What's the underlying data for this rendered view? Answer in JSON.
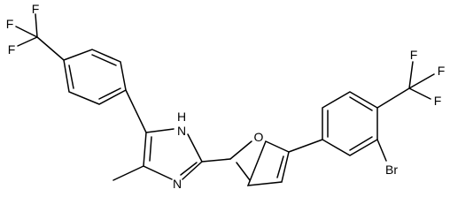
{
  "molecule": {
    "left_cf3": [
      "F",
      "F",
      "F"
    ],
    "imidazole": {
      "h": "H",
      "nh": "N",
      "n": "N"
    },
    "furan": {
      "o": "O"
    },
    "right_ring": {
      "br": "Br",
      "cf3": [
        "F",
        "F",
        "F"
      ]
    }
  }
}
